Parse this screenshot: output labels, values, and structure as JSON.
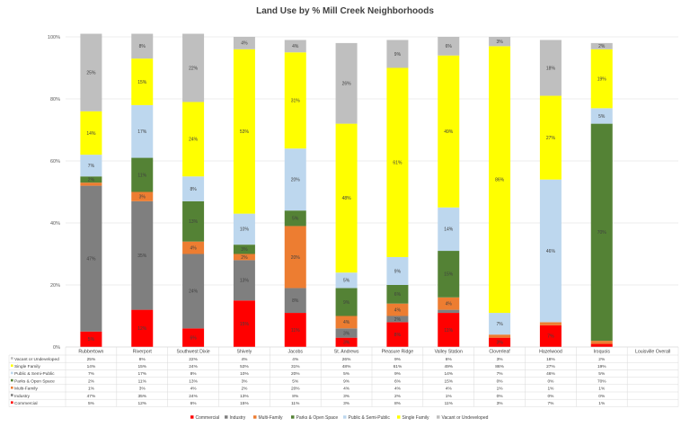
{
  "chart_data": {
    "type": "bar",
    "stacked": true,
    "title": "Land Use by % Mill Creek Neighborhoods",
    "categories": [
      "Rubbertown",
      "Riverport",
      "Southwest Dixie",
      "Shively",
      "Jacobs",
      "St. Andrews",
      "Pleasure Ridge",
      "Valley Station",
      "Cloverleaf",
      "Hazelwood",
      "Iroquois",
      "Louisville Overall"
    ],
    "ylim": [
      0,
      100
    ],
    "yticks": [
      "0%",
      "20%",
      "40%",
      "60%",
      "80%",
      "100%"
    ],
    "ytick_values": [
      0,
      20,
      40,
      60,
      80,
      100
    ],
    "legend_position": "bottom",
    "series": [
      {
        "name": "Commercial",
        "color": "#ff0000",
        "values": [
          5,
          12,
          6,
          15,
          11,
          3,
          8,
          11,
          3,
          7,
          1,
          null
        ]
      },
      {
        "name": "Industry",
        "color": "#7f7f7f",
        "values": [
          47,
          35,
          24,
          13,
          8,
          3,
          2,
          1,
          0,
          0,
          0,
          null
        ]
      },
      {
        "name": "Multi-Family",
        "color": "#ed7d31",
        "values": [
          1,
          3,
          4,
          2,
          20,
          4,
          4,
          4,
          1,
          1,
          1,
          null
        ]
      },
      {
        "name": "Parks & Open Space",
        "color": "#548235",
        "values": [
          2,
          11,
          13,
          3,
          5,
          9,
          6,
          15,
          0,
          0,
          70,
          null
        ]
      },
      {
        "name": "Public & Semi-Public",
        "color": "#bdd7ee",
        "values": [
          7,
          17,
          8,
          10,
          20,
          5,
          9,
          14,
          7,
          46,
          5,
          null
        ]
      },
      {
        "name": "Single Family",
        "color": "#ffff00",
        "values": [
          14,
          15,
          24,
          53,
          31,
          48,
          61,
          49,
          86,
          27,
          19,
          null
        ]
      },
      {
        "name": "Vacant or Undeveloped",
        "color": "#bfbfbf",
        "values": [
          25,
          8,
          22,
          4,
          4,
          26,
          9,
          6,
          3,
          18,
          2,
          null
        ]
      }
    ],
    "table": {
      "rows_order": [
        "Vacant or Undeveloped",
        "Single Family",
        "Public & Semi-Public",
        "Parks & Open Space",
        "Multi-Family",
        "Industry",
        "Commercial"
      ],
      "cells": {
        "Vacant or Undeveloped": [
          "25%",
          "8%",
          "22%",
          "4%",
          "4%",
          "26%",
          "9%",
          "6%",
          "3%",
          "18%",
          "2%",
          ""
        ],
        "Single Family": [
          "14%",
          "15%",
          "24%",
          "53%",
          "31%",
          "48%",
          "61%",
          "49%",
          "86%",
          "27%",
          "19%",
          ""
        ],
        "Public & Semi-Public": [
          "7%",
          "17%",
          "8%",
          "10%",
          "20%",
          "5%",
          "9%",
          "14%",
          "7%",
          "46%",
          "5%",
          ""
        ],
        "Parks & Open Space": [
          "2%",
          "11%",
          "13%",
          "3%",
          "5%",
          "9%",
          "6%",
          "15%",
          "0%",
          "0%",
          "70%",
          ""
        ],
        "Multi-Family": [
          "1%",
          "3%",
          "4%",
          "2%",
          "20%",
          "4%",
          "4%",
          "4%",
          "1%",
          "1%",
          "1%",
          ""
        ],
        "Industry": [
          "47%",
          "35%",
          "24%",
          "13%",
          "8%",
          "3%",
          "2%",
          "1%",
          "0%",
          "0%",
          "0%",
          ""
        ],
        "Commercial": [
          "5%",
          "12%",
          "6%",
          "15%",
          "11%",
          "3%",
          "8%",
          "11%",
          "3%",
          "7%",
          "1%",
          ""
        ]
      }
    }
  }
}
